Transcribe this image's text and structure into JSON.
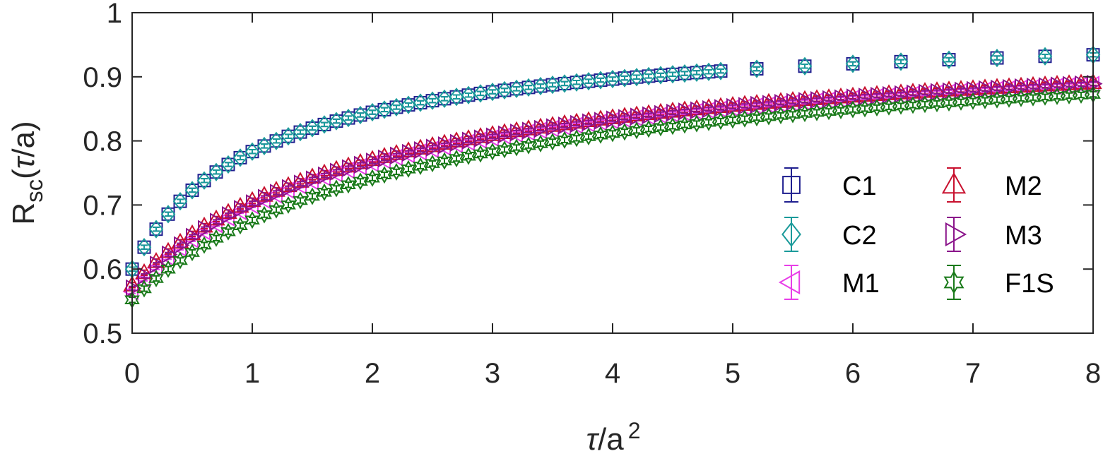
{
  "chart_data": {
    "type": "scatter",
    "xlabel": {
      "symbol": "τ",
      "text": "/a",
      "sup": "2"
    },
    "ylabel": {
      "main": "R",
      "sub": "sc",
      "open": "(",
      "symbol": "τ",
      "tail": "/a)"
    },
    "xlim": [
      0,
      8
    ],
    "ylim": [
      0.5,
      1
    ],
    "xticks": [
      0,
      1,
      2,
      3,
      4,
      5,
      6,
      7,
      8
    ],
    "xtick_labels": [
      "0",
      "1",
      "2",
      "3",
      "4",
      "5",
      "6",
      "7",
      "8"
    ],
    "yticks": [
      0.5,
      0.6,
      0.7,
      0.8,
      0.9,
      1
    ],
    "ytick_labels": [
      "0.5",
      "0.6",
      "0.7",
      "0.8",
      "0.9",
      "1"
    ],
    "grid": false,
    "legend": {
      "position": "bottom-right",
      "columns": 2
    },
    "series": [
      {
        "name": "C1",
        "color": "#1f1f8f",
        "marker": "square",
        "x_start": 0,
        "x_step": 0.1,
        "x_stop": 4.9,
        "x_extra": [
          5.2,
          5.6,
          6.0,
          6.4,
          6.8,
          7.2,
          7.6,
          8.0
        ],
        "y_model": {
          "y0": 0.6,
          "y_inf": 1.0,
          "p": 0.75,
          "q": 1.265
        },
        "error": 0.003
      },
      {
        "name": "C2",
        "color": "#1a9a9a",
        "marker": "diamond",
        "x_start": 0,
        "x_step": 0.1,
        "x_stop": 4.9,
        "x_extra": [
          5.2,
          5.6,
          6.0,
          6.4,
          6.8,
          7.2,
          7.6,
          8.0
        ],
        "y_model": {
          "y0": 0.6,
          "y_inf": 1.0,
          "p": 0.75,
          "q": 1.265
        },
        "error": 0.003
      },
      {
        "name": "M1",
        "color": "#e83ee8",
        "marker": "triangle-left",
        "x_start": 0,
        "x_step": 0.1,
        "x_stop": 8.0,
        "x_extra": [],
        "y_model": {
          "y0": 0.565,
          "y_inf": 1.0,
          "p": 0.75,
          "q": 0.635
        },
        "error": 0.003
      },
      {
        "name": "M2",
        "color": "#c8102e",
        "marker": "triangle-up",
        "x_start": 0,
        "x_step": 0.1,
        "x_stop": 8.0,
        "x_extra": [],
        "y_model": {
          "y0": 0.575,
          "y_inf": 1.0,
          "p": 0.75,
          "q": 0.64
        },
        "error": 0.004
      },
      {
        "name": "M3",
        "color": "#8b158b",
        "marker": "triangle-right",
        "x_start": 0,
        "x_step": 0.1,
        "x_stop": 8.0,
        "x_extra": [],
        "y_model": {
          "y0": 0.57,
          "y_inf": 1.0,
          "p": 0.75,
          "q": 0.637
        },
        "error": 0.003
      },
      {
        "name": "F1S",
        "color": "#1a7a1a",
        "marker": "hexagram",
        "x_start": 0,
        "x_step": 0.1,
        "x_stop": 8.0,
        "x_extra": [],
        "y_model": {
          "y0": 0.552,
          "y_inf": 1.0,
          "p": 0.75,
          "q": 0.544
        },
        "error": 0.004
      }
    ]
  }
}
